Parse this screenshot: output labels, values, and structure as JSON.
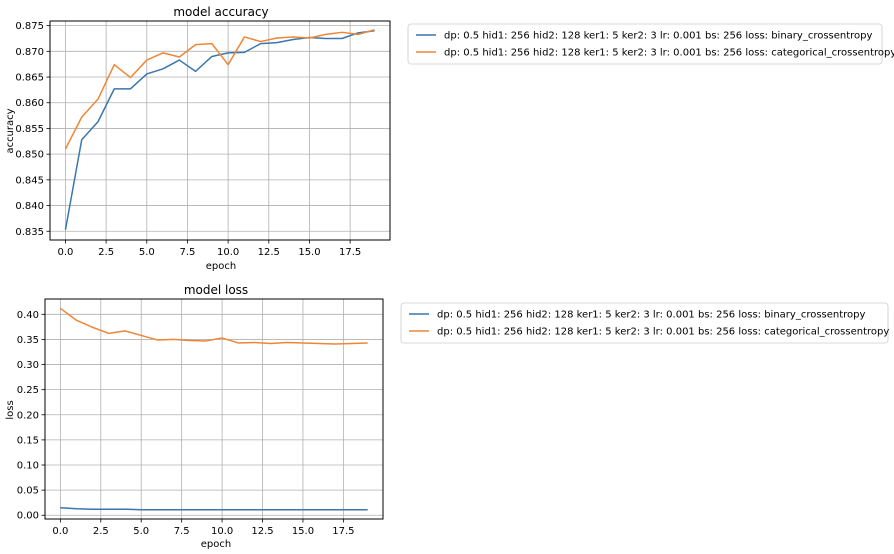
{
  "colors": {
    "series1": "#3a76af",
    "series2": "#ef8636",
    "grid": "#b0b0b0",
    "frame": "#000000"
  },
  "chart_data": [
    {
      "type": "line",
      "title": "model accuracy",
      "xlabel": "epoch",
      "ylabel": "accuracy",
      "xlim": [
        -0.95,
        19.95
      ],
      "ylim": [
        0.8333,
        0.8759
      ],
      "xticks": [
        0.0,
        2.5,
        5.0,
        7.5,
        10.0,
        12.5,
        15.0,
        17.5
      ],
      "xtick_labels": [
        "0.0",
        "2.5",
        "5.0",
        "7.5",
        "10.0",
        "12.5",
        "15.0",
        "17.5"
      ],
      "yticks": [
        0.835,
        0.84,
        0.845,
        0.85,
        0.855,
        0.86,
        0.865,
        0.87,
        0.875
      ],
      "ytick_labels": [
        "0.835",
        "0.840",
        "0.845",
        "0.850",
        "0.855",
        "0.860",
        "0.865",
        "0.870",
        "0.875"
      ],
      "grid": true,
      "legend_position": "outside-top-right",
      "x": [
        0,
        1,
        2,
        3,
        4,
        5,
        6,
        7,
        8,
        9,
        10,
        11,
        12,
        13,
        14,
        15,
        16,
        17,
        18,
        19
      ],
      "series": [
        {
          "name": "dp: 0.5 hid1: 256 hid2: 128 ker1: 5 ker2: 3 lr: 0.001 bs: 256 loss: binary_crossentropy",
          "values": [
            0.8353,
            0.8528,
            0.8563,
            0.8627,
            0.8627,
            0.8656,
            0.8666,
            0.8683,
            0.8661,
            0.869,
            0.8697,
            0.8698,
            0.8715,
            0.8717,
            0.8723,
            0.8727,
            0.8725,
            0.8725,
            0.8736,
            0.874
          ]
        },
        {
          "name": "dp: 0.5 hid1: 256 hid2: 128 ker1: 5 ker2: 3 lr: 0.001 bs: 256 loss: categorical_crossentropy",
          "values": [
            0.851,
            0.8572,
            0.8607,
            0.8674,
            0.8649,
            0.8683,
            0.8697,
            0.8689,
            0.8713,
            0.8715,
            0.8674,
            0.8728,
            0.8719,
            0.8726,
            0.8728,
            0.8726,
            0.8733,
            0.8737,
            0.8733,
            0.8742
          ]
        }
      ]
    },
    {
      "type": "line",
      "title": "model loss",
      "xlabel": "epoch",
      "ylabel": "loss",
      "xlim": [
        -0.95,
        19.95
      ],
      "ylim": [
        -0.0075,
        0.4305
      ],
      "xticks": [
        0.0,
        2.5,
        5.0,
        7.5,
        10.0,
        12.5,
        15.0,
        17.5
      ],
      "xtick_labels": [
        "0.0",
        "2.5",
        "5.0",
        "7.5",
        "10.0",
        "12.5",
        "15.0",
        "17.5"
      ],
      "yticks": [
        0.0,
        0.05,
        0.1,
        0.15,
        0.2,
        0.25,
        0.3,
        0.35,
        0.4
      ],
      "ytick_labels": [
        "0.00",
        "0.05",
        "0.10",
        "0.15",
        "0.20",
        "0.25",
        "0.30",
        "0.35",
        "0.40"
      ],
      "grid": true,
      "legend_position": "outside-top-right",
      "x": [
        0,
        1,
        2,
        3,
        4,
        5,
        6,
        7,
        8,
        9,
        10,
        11,
        12,
        13,
        14,
        15,
        16,
        17,
        18,
        19
      ],
      "series": [
        {
          "name": "dp: 0.5 hid1: 256 hid2: 128 ker1: 5 ker2: 3 lr: 0.001 bs: 256 loss: binary_crossentropy",
          "values": [
            0.015,
            0.013,
            0.012,
            0.012,
            0.012,
            0.011,
            0.011,
            0.011,
            0.011,
            0.011,
            0.011,
            0.011,
            0.011,
            0.011,
            0.011,
            0.011,
            0.011,
            0.011,
            0.011,
            0.011
          ]
        },
        {
          "name": "dp: 0.5 hid1: 256 hid2: 128 ker1: 5 ker2: 3 lr: 0.001 bs: 256 loss: categorical_crossentropy",
          "values": [
            0.412,
            0.388,
            0.374,
            0.362,
            0.367,
            0.358,
            0.349,
            0.35,
            0.348,
            0.347,
            0.353,
            0.343,
            0.344,
            0.342,
            0.344,
            0.343,
            0.342,
            0.341,
            0.342,
            0.343
          ]
        }
      ]
    }
  ]
}
